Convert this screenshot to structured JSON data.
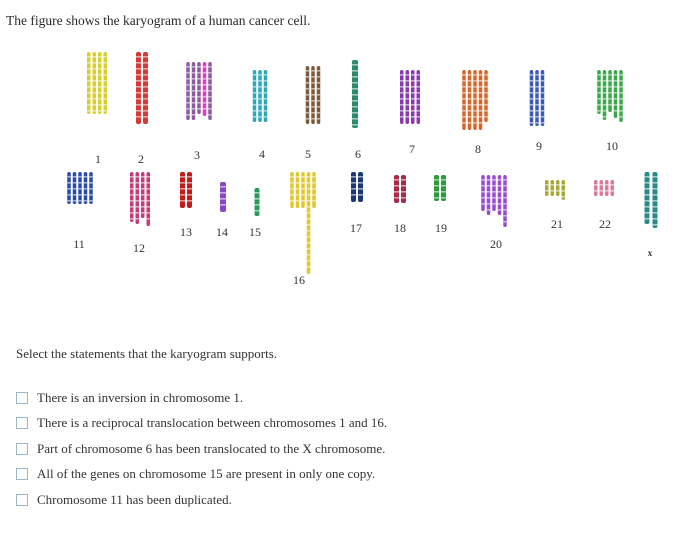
{
  "question": "The figure shows the karyogram of a human cancer cell.",
  "prompt": "Select the statements that the karyogram supports.",
  "options": [
    "There is an inversion in chromosome 1.",
    "There is a reciprocal translocation between chromosomes 1 and 16.",
    "Part of chromosome 6 has been translocated to the X chromosome.",
    "All of the genes on chromosome 15 are present in only one copy.",
    "Chromosome 11 has been duplicated."
  ],
  "karyogram": {
    "labels": [
      "1",
      "2",
      "3",
      "4",
      "5",
      "6",
      "7",
      "8",
      "9",
      "10",
      "11",
      "12",
      "13",
      "14",
      "15",
      "16",
      "17",
      "18",
      "19",
      "20",
      "21",
      "22",
      "x"
    ],
    "colors": {
      "1": "#d7cf2a",
      "2": "#d63a3a",
      "3": "#8a5a9a",
      "4": "#2aa7b8",
      "5": "#7a5a3a",
      "6": "#2a8a6a",
      "7": "#8a3ab0",
      "8": "#d8662a",
      "9": "#3a58b8",
      "10": "#3aa84a",
      "11": "#2a4aa8",
      "12": "#c43a7a",
      "13": "#c41a1a",
      "14": "#8a48c8",
      "15": "#2a9a58",
      "16": "#e0c82a",
      "17": "#1a3878",
      "18": "#a82a4a",
      "19": "#2a9a3a",
      "20": "#9a4ad0",
      "21": "#a8a838",
      "22": "#d87a9a",
      "x": "#2a8a8a",
      "extra": "#e83ab8"
    }
  }
}
